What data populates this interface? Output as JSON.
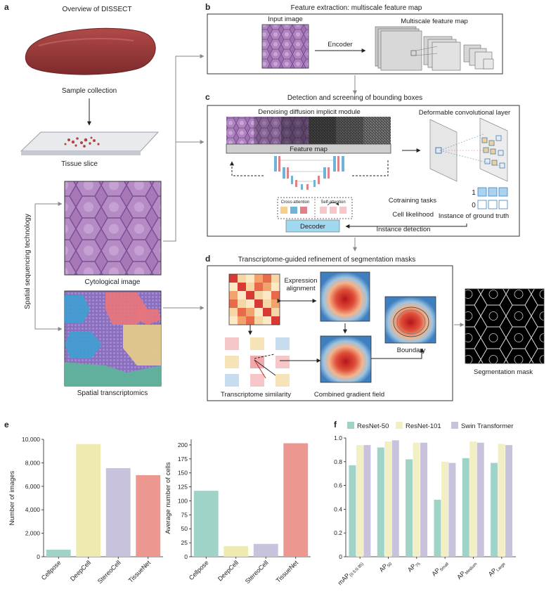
{
  "panel_a": {
    "letter": "a",
    "title": "Overview of DISSECT",
    "sample_collection": "Sample collection",
    "tissue_slice": "Tissue slice",
    "cytological_image": "Cytological image",
    "spatial_transcriptomics": "Spatial transcriptomics",
    "side_label": "Spatial sequencing technology"
  },
  "panel_b": {
    "letter": "b",
    "title": "Feature extraction: multiscale feature map",
    "input_image": "Input image",
    "encoder": "Encoder",
    "multiscale_map": "Multiscale feature map"
  },
  "panel_c": {
    "letter": "c",
    "title": "Detection and screening of bounding boxes",
    "ddim": "Denoising diffusion implicit module",
    "feature_map": "Feature map",
    "deformable": "Deformable convolutional layer",
    "cross_attention": "Cross-attention",
    "self_attention": "Self-attention",
    "decoder": "Decoder",
    "cotraining": "Cotraining tasks",
    "cell_likelihood": "Cell likelihood",
    "instance_detection": "Instance detection",
    "gt_one": "1",
    "gt_zero": "0",
    "instance_gt": "Instance of ground truth"
  },
  "panel_d": {
    "letter": "d",
    "title": "Transcriptome-guided refinement of segmentation masks",
    "expression_line1": "Expression",
    "expression_line2": "alignment",
    "boundary": "Boundary",
    "transcriptome_similarity": "Transcriptome similarity",
    "combined_gradient": "Combined gradient field",
    "segmentation_mask": "Segmentation mask"
  },
  "panel_e": {
    "letter": "e"
  },
  "panel_f": {
    "letter": "f"
  },
  "colors": {
    "cellpose": "#9fd3c8",
    "deepcell": "#eeeab0",
    "stereocell": "#c9c2dc",
    "tissuenet": "#ec9790",
    "resnet50": "#9fd3c8",
    "resnet101": "#f2efc4",
    "swin": "#c9c2dc",
    "arrow": "#888888"
  },
  "chart_data": [
    {
      "type": "bar",
      "categories": [
        "Cellpose",
        "DeepCell",
        "StereoCell",
        "TissueNet"
      ],
      "values": [
        600,
        9600,
        7550,
        6950
      ],
      "ylabel": "Number of images",
      "ylim": [
        0,
        10000
      ],
      "yticks": [
        0,
        2000,
        4000,
        6000,
        8000,
        10000
      ],
      "ytick_labels": [
        "0",
        "2,000",
        "4,000",
        "6,000",
        "8,000",
        "10,000"
      ],
      "grid": false
    },
    {
      "type": "bar",
      "categories": [
        "Cellpose",
        "DeepCell",
        "StereoCell",
        "TissueNet"
      ],
      "values": [
        118,
        19,
        23,
        203
      ],
      "ylabel": "Average number of cells",
      "ylim": [
        0,
        210
      ],
      "yticks": [
        0,
        25,
        50,
        75,
        100,
        125,
        150,
        175,
        200
      ],
      "ytick_labels": [
        "0",
        "25",
        "50",
        "75",
        "100",
        "125",
        "150",
        "175",
        "200"
      ],
      "grid": false
    },
    {
      "type": "bar",
      "categories": [
        {
          "main": "mAP",
          "sub": "(0.5:0.95)"
        },
        {
          "main": "AP",
          "sub": "50"
        },
        {
          "main": "AP",
          "sub": "75"
        },
        {
          "main": "AP",
          "sub": "Small"
        },
        {
          "main": "AP",
          "sub": "Medium"
        },
        {
          "main": "AP",
          "sub": "Large"
        }
      ],
      "series": [
        {
          "name": "ResNet-50",
          "values": [
            0.77,
            0.92,
            0.82,
            0.48,
            0.83,
            0.79
          ]
        },
        {
          "name": "ResNet-101",
          "values": [
            0.94,
            0.97,
            0.96,
            0.8,
            0.97,
            0.95
          ]
        },
        {
          "name": "Swin Transformer",
          "values": [
            0.94,
            0.98,
            0.96,
            0.79,
            0.96,
            0.94
          ]
        }
      ],
      "ylim": [
        0,
        1.0
      ],
      "yticks": [
        0,
        0.2,
        0.4,
        0.6,
        0.8,
        1.0
      ],
      "ytick_labels": [
        "0",
        "0.2",
        "0.4",
        "0.6",
        "0.8",
        "1.0"
      ],
      "legend": "top",
      "grid": false
    }
  ]
}
